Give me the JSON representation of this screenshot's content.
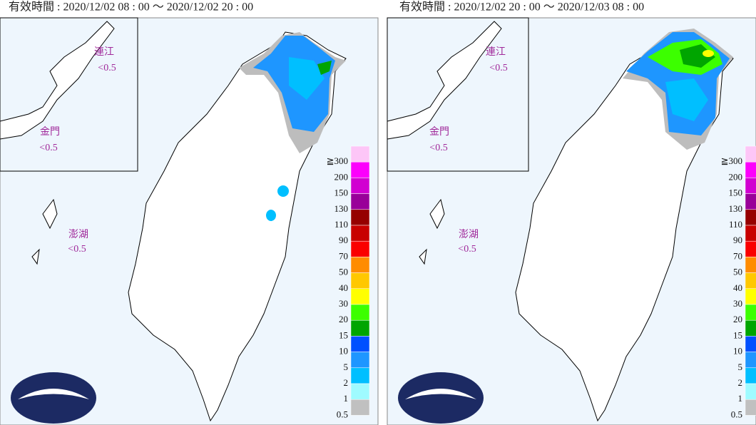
{
  "panels": [
    {
      "header": "有效時間 : 2020/12/02 08 : 00 ～ 2020/12/02 20 : 00",
      "islands": [
        {
          "name": "連江",
          "value": "<0.5"
        },
        {
          "name": "金門",
          "value": "<0.5"
        },
        {
          "name": "澎湖",
          "value": "<0.5"
        }
      ]
    },
    {
      "header": "有效時間 : 2020/12/02 20 : 00 ～ 2020/12/03 08 : 00",
      "islands": [
        {
          "name": "連江",
          "value": "<0.5"
        },
        {
          "name": "金門",
          "value": "<0.5"
        },
        {
          "name": "澎湖",
          "value": "<0.5"
        }
      ]
    }
  ],
  "legend": {
    "labels": [
      "≧300",
      "200",
      "150",
      "130",
      "110",
      "90",
      "70",
      "50",
      "40",
      "30",
      "20",
      "15",
      "10",
      "5",
      "2",
      "1",
      "0.5"
    ],
    "colors": [
      "#fdc6f7",
      "#fc00fc",
      "#d100d1",
      "#990099",
      "#960000",
      "#c80000",
      "#fa0000",
      "#ff8c00",
      "#ffc800",
      "#ffff00",
      "#3cff00",
      "#00a500",
      "#0050ff",
      "#1e96ff",
      "#00bfff",
      "#9ffbff",
      "#c0c0c0"
    ]
  }
}
